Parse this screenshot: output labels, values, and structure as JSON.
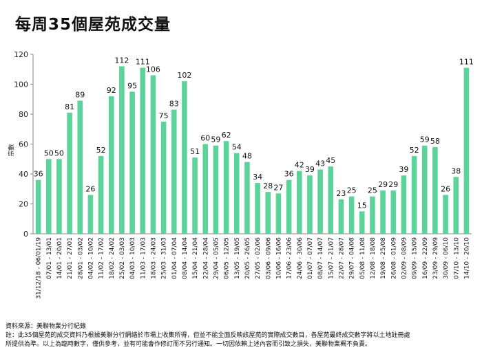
{
  "chart_data": {
    "type": "bar",
    "title": "每周35個屋苑成交量",
    "ylabel": "宗數",
    "xlabel": "",
    "ylim": [
      0,
      120
    ],
    "yticks": [
      0,
      20,
      40,
      60,
      80,
      100,
      120
    ],
    "grid": false,
    "bar_color": "#5cd39a",
    "categories": [
      "31/12/18 - 06/01/19",
      "07/01 - 13/01",
      "14/01 - 20/01",
      "21/01 - 27/01",
      "28/01 - 03/02",
      "04/02 - 10/02",
      "11/02 - 17/02",
      "18/02 - 24/02",
      "25/02 - 03/03",
      "04/03 - 10/03",
      "11/03 - 17/03",
      "18/03 - 24/03",
      "25/03 - 31/03",
      "01/04 - 07/04",
      "08/04 - 14/04",
      "15/04 - 21/04",
      "22/04 - 28/04",
      "29/04 - 05/05",
      "06/05 - 12/05",
      "13/05 - 19/05",
      "20/05 - 26/05",
      "27/05 - 02/06",
      "03/06 - 09/06",
      "10/06 - 16/06",
      "17/06 - 23/06",
      "24/06 - 30/06",
      "01/07 - 07/07",
      "08/07 - 14/07",
      "15/07 - 21/07",
      "22/07 - 28/07",
      "29/07 - 04/08",
      "05/08 - 11/08",
      "12/08 - 18/08",
      "19/08 - 25/08",
      "26/08 - 01/09",
      "02/09 - 08/09",
      "09/09 - 15/09",
      "16/09 - 22/09",
      "23/09 - 29/09",
      "30/09 - 06/10",
      "07/10 - 13/10",
      "14/10 - 20/10"
    ],
    "values": [
      36,
      50,
      50,
      81,
      89,
      26,
      52,
      92,
      112,
      95,
      111,
      106,
      75,
      83,
      102,
      51,
      60,
      59,
      62,
      54,
      48,
      34,
      28,
      27,
      36,
      42,
      39,
      43,
      45,
      23,
      25,
      15,
      25,
      29,
      29,
      39,
      52,
      59,
      58,
      26,
      38,
      111
    ]
  },
  "footer": {
    "source": "資料來源：美聯物業分行紀錄",
    "note_line1": "註：此35個屋苑的成交資料乃根據美聯分行網絡於市場上收集所得，但並不能全面反映該屋苑的實際成交數目，各屋苑最終成交數字將以土地註冊處",
    "note_line2": "所提供為準。以上為臨時數字，僅供參考，並有可能會作修訂而不另行通知。一切因依賴上述內容而引致之損失，美聯物業概不負責。"
  }
}
